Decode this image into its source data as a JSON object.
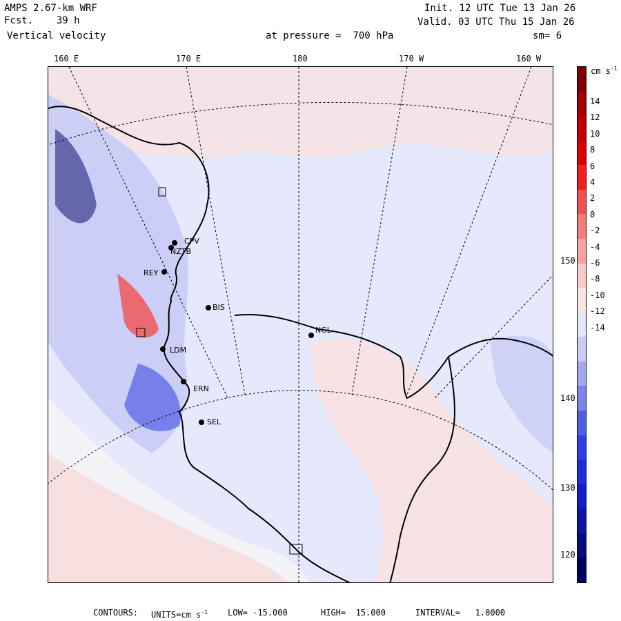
{
  "header": {
    "model": "AMPS 2.67-km WRF",
    "forecast": "Fcst.    39 h",
    "field": "Vertical velocity",
    "init": "Init. 12 UTC Tue 13 Jan 26",
    "valid": "Valid. 03 UTC Thu 15 Jan 26",
    "pressure": "at pressure =  700 hPa",
    "smoothing": "sm= 6"
  },
  "longitude_labels": [
    "160 E",
    "170 E",
    "180",
    "170 W",
    "160 W"
  ],
  "right_labels": [
    "150 W",
    "140 W",
    "130 W",
    "120 W"
  ],
  "stations": [
    "CPV",
    "NZTB",
    "REY",
    "BIS",
    "NGL",
    "LDM",
    "ERN",
    "SEL"
  ],
  "colorbar": {
    "units": "cm s",
    "units_exp": "-1",
    "ticks": [
      "14",
      "12",
      "10",
      "8",
      "6",
      "4",
      "2",
      "0",
      "-2",
      "-4",
      "-6",
      "-8",
      "-10",
      "-12",
      "-14"
    ],
    "colors": [
      "#7f0000",
      "#a00000",
      "#c00000",
      "#dd0000",
      "#ee2020",
      "#f25050",
      "#f57a7a",
      "#f7a3a3",
      "#f9c8c8",
      "#fbe4e4",
      "#e4e6fb",
      "#c8ccf6",
      "#a3aaf0",
      "#7a84ea",
      "#5060e4",
      "#2f3fe0",
      "#1e2fd6",
      "#1020c0",
      "#0a15a0",
      "#050c80",
      "#000060"
    ]
  },
  "footer": {
    "contours_label": "CONTOURS:",
    "units_label": "UNITS=cm s",
    "units_exp": "-1",
    "low": "LOW= -15.000",
    "high": "HIGH=  15.000",
    "interval": "INTERVAL=   1.0000"
  }
}
